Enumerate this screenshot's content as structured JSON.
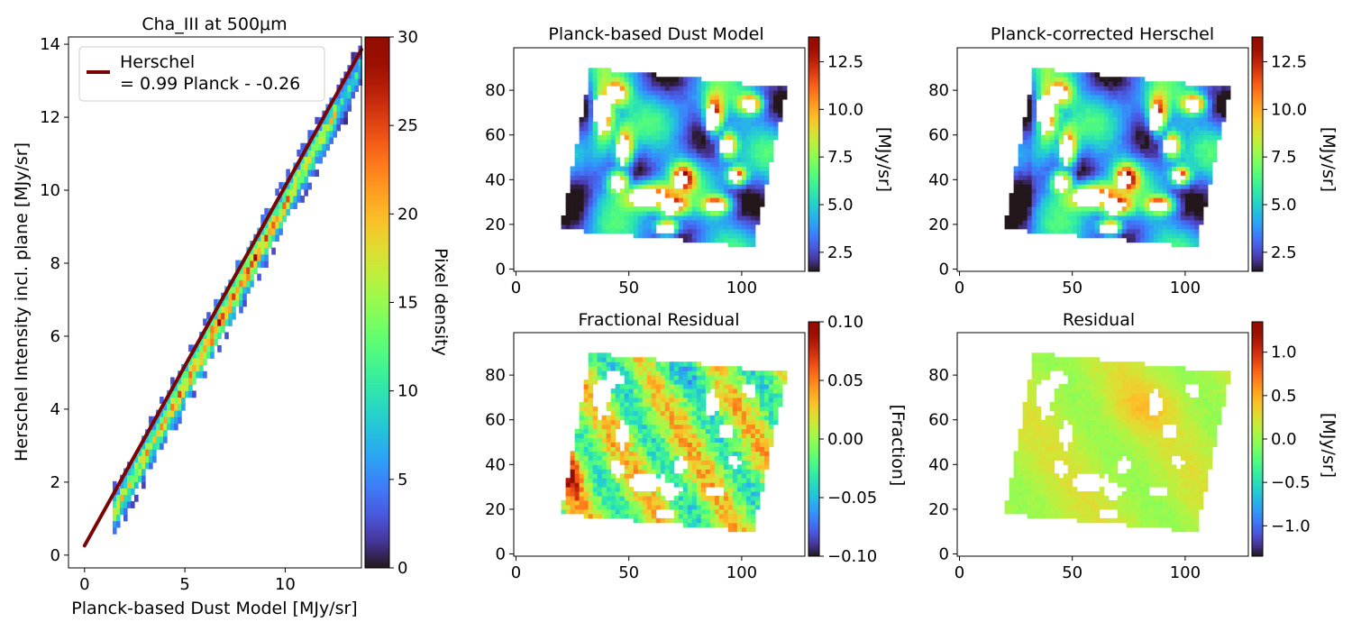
{
  "chart_data": [
    {
      "type": "heatmap",
      "subtype": "2d-histogram-with-fit",
      "title": "Cha_III at 500μm",
      "xlabel": "Planck-based Dust Model [MJy/sr]",
      "ylabel": "Herschel Intensity incl. plane [MJy/sr]",
      "xlim": [
        -0.8,
        13.8
      ],
      "ylim": [
        -0.35,
        14.2
      ],
      "x_ticks": [
        0,
        5,
        10
      ],
      "y_ticks": [
        0,
        2,
        4,
        6,
        8,
        10,
        12,
        14
      ],
      "fit": {
        "slope": 0.99,
        "intercept": -0.26,
        "x_range": [
          0,
          13.8
        ]
      },
      "hist_x_range": [
        1.4,
        13.8
      ],
      "legend": {
        "line1": "Herschel",
        "line2": "= 0.99 Planck - -0.26",
        "position": "top-left",
        "color": "#7a0403"
      },
      "colorbar": {
        "label": "Pixel density",
        "colormap": "turbo",
        "range": [
          0,
          30
        ],
        "ticks": [
          0,
          5,
          10,
          15,
          20,
          25,
          30
        ]
      }
    },
    {
      "type": "heatmap",
      "title": "Planck-based Dust Model",
      "xlim": [
        -1,
        128
      ],
      "ylim": [
        -1,
        99
      ],
      "x_ticks": [
        0,
        50,
        100
      ],
      "y_ticks": [
        0,
        20,
        40,
        60,
        80
      ],
      "colormap": "turbo",
      "mode": "model",
      "colorbar": {
        "label": "[MJy/sr]",
        "range": [
          1.5,
          13.8
        ],
        "ticks": [
          "2.5",
          "5.0",
          "7.5",
          "10.0",
          "12.5"
        ],
        "tick_values": [
          2.5,
          5.0,
          7.5,
          10.0,
          12.5
        ]
      }
    },
    {
      "type": "heatmap",
      "title": "Planck-corrected Herschel",
      "xlim": [
        -1,
        128
      ],
      "ylim": [
        -1,
        99
      ],
      "x_ticks": [
        0,
        50,
        100
      ],
      "y_ticks": [
        0,
        20,
        40,
        60,
        80
      ],
      "colormap": "turbo",
      "mode": "herschel",
      "colorbar": {
        "label": "[MJy/sr]",
        "range": [
          1.5,
          13.8
        ],
        "ticks": [
          "2.5",
          "5.0",
          "7.5",
          "10.0",
          "12.5"
        ],
        "tick_values": [
          2.5,
          5.0,
          7.5,
          10.0,
          12.5
        ]
      }
    },
    {
      "type": "heatmap",
      "title": "Fractional Residual",
      "xlim": [
        -1,
        128
      ],
      "ylim": [
        -1,
        99
      ],
      "x_ticks": [
        0,
        50,
        100
      ],
      "y_ticks": [
        0,
        20,
        40,
        60,
        80
      ],
      "colormap": "turbo",
      "mode": "fraction",
      "colorbar": {
        "label": "[Fraction]",
        "range": [
          -0.1,
          0.1
        ],
        "ticks": [
          "−0.10",
          "−0.05",
          "0.00",
          "0.05",
          "0.10"
        ],
        "tick_values": [
          -0.1,
          -0.05,
          0.0,
          0.05,
          0.1
        ]
      }
    },
    {
      "type": "heatmap",
      "title": "Residual",
      "xlim": [
        -1,
        128
      ],
      "ylim": [
        -1,
        99
      ],
      "x_ticks": [
        0,
        50,
        100
      ],
      "y_ticks": [
        0,
        20,
        40,
        60,
        80
      ],
      "colormap": "turbo",
      "mode": "residual",
      "colorbar": {
        "label": "[MJy/sr]",
        "range": [
          -1.35,
          1.35
        ],
        "ticks": [
          "−1.0",
          "−0.5",
          "0.0",
          "0.5",
          "1.0"
        ],
        "tick_values": [
          -1.0,
          -0.5,
          0.0,
          0.5,
          1.0
        ]
      }
    }
  ]
}
